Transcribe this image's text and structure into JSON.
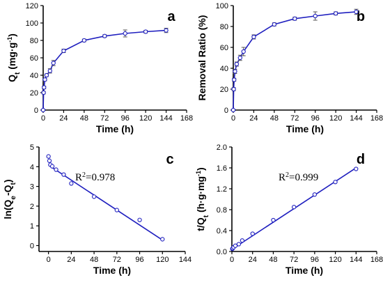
{
  "chart_data": [
    {
      "id": "a",
      "type": "line",
      "panel_label": "a",
      "xlabel": "Time (h)",
      "ylabel": "Q_t (mg·g⁻¹)",
      "ylabel_parts": {
        "base": "Q",
        "sub": "t",
        "unit": " (mg·g",
        "sup": "-1",
        "close": ")"
      },
      "xlim": [
        0,
        168
      ],
      "ylim": [
        0,
        120
      ],
      "xticks": [
        0,
        24,
        48,
        72,
        96,
        120,
        144,
        168
      ],
      "yticks": [
        0,
        20,
        40,
        60,
        80,
        100,
        120
      ],
      "color": "#1f1fbf",
      "x": [
        0,
        0.5,
        1,
        2,
        4,
        8,
        12,
        24,
        48,
        72,
        96,
        120,
        144
      ],
      "y": [
        0,
        20,
        26,
        35,
        40,
        45,
        54,
        68,
        80,
        85,
        88,
        90,
        91.5
      ],
      "error": [
        0,
        1.5,
        1.5,
        1.5,
        1.5,
        2.5,
        3,
        2,
        1.5,
        1.5,
        4,
        1.5,
        2.5
      ]
    },
    {
      "id": "b",
      "type": "line",
      "panel_label": "b",
      "xlabel": "Time (h)",
      "ylabel": "Removal Ratio (%)",
      "xlim": [
        0,
        168
      ],
      "ylim": [
        0,
        100
      ],
      "xticks": [
        0,
        24,
        48,
        72,
        96,
        120,
        144,
        168
      ],
      "yticks": [
        0,
        20,
        40,
        60,
        80,
        100
      ],
      "color": "#1f1fbf",
      "x": [
        0,
        0.5,
        1,
        2,
        4,
        8,
        12,
        24,
        48,
        72,
        96,
        120,
        144
      ],
      "y": [
        0,
        20,
        29,
        37,
        44,
        50,
        56,
        70,
        82,
        87.5,
        90,
        92.5,
        94
      ],
      "error": [
        0,
        1.5,
        1.5,
        2,
        2,
        2.5,
        4,
        2,
        1.5,
        1.5,
        4,
        1.5,
        2.5
      ]
    },
    {
      "id": "c",
      "type": "scatter",
      "panel_label": "c",
      "xlabel": "Time (h)",
      "ylabel": "ln(Q_e-Q_t)",
      "ylabel_parts": {
        "open": "ln(Q",
        "sub1": "e",
        "mid": "-Q",
        "sub2": "t",
        "close": ")"
      },
      "annotation": {
        "base": "R",
        "sup": "2",
        "rest": "=0.978"
      },
      "xlim": [
        -10,
        144
      ],
      "ylim": [
        -0.3,
        5
      ],
      "xticks": [
        0,
        24,
        48,
        72,
        96,
        120,
        144
      ],
      "yticks": [
        0,
        1,
        2,
        3,
        4,
        5
      ],
      "color": "#1f1fbf",
      "x": [
        0,
        1,
        2,
        4,
        8,
        16,
        24,
        48,
        72,
        96,
        120
      ],
      "y": [
        4.52,
        4.3,
        4.1,
        4.02,
        3.85,
        3.6,
        3.15,
        2.48,
        1.8,
        1.3,
        0.32
      ],
      "fit_line": {
        "x": [
          0,
          120
        ],
        "y": [
          4.08,
          0.28
        ]
      }
    },
    {
      "id": "d",
      "type": "scatter",
      "panel_label": "d",
      "xlabel": "Time (h)",
      "ylabel": "t/Q_t (h·g·mg⁻¹)",
      "ylabel_parts": {
        "base": "t/Q",
        "sub": "t",
        "unit": " (h·g·mg",
        "sup": "-1",
        "close": ")"
      },
      "annotation": {
        "base": "R",
        "sup": "2",
        "rest": "=0.999"
      },
      "xlim": [
        0,
        168
      ],
      "ylim": [
        0,
        2.0
      ],
      "xticks": [
        0,
        24,
        48,
        72,
        96,
        120,
        144,
        168
      ],
      "yticks": [
        0.0,
        0.4,
        0.8,
        1.2,
        1.6,
        2.0
      ],
      "ytick_decimals": 1,
      "color": "#1f1fbf",
      "x": [
        0.5,
        1,
        2,
        4,
        8,
        12,
        24,
        48,
        72,
        96,
        120,
        144
      ],
      "y": [
        0.05,
        0.06,
        0.08,
        0.11,
        0.14,
        0.21,
        0.34,
        0.6,
        0.85,
        1.09,
        1.33,
        1.58
      ],
      "fit_line": {
        "x": [
          0,
          144
        ],
        "y": [
          0.04,
          1.6
        ]
      }
    }
  ]
}
